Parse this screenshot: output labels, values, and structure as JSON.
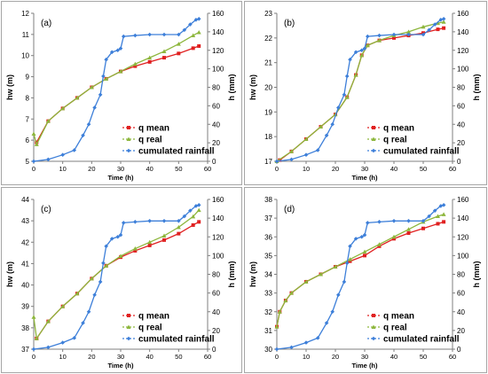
{
  "legend_labels": [
    "q mean",
    "q real",
    "cumulated rainfall"
  ],
  "colors": {
    "q_mean": "#e02020",
    "q_real": "#8db63c",
    "rainfall": "#3d7fd9",
    "axis": "#7f7f7f"
  },
  "chart_data": [
    {
      "panel_label": "(a)",
      "type": "line",
      "xlabel": "Time (h)",
      "ylabel": "hw (m)",
      "y2label": "h (mm)",
      "xlim": [
        0,
        60
      ],
      "ylim": [
        5,
        12
      ],
      "y2lim": [
        0,
        160
      ],
      "xticks": [
        0,
        10,
        20,
        30,
        40,
        50,
        60
      ],
      "yticks": [
        5,
        6,
        7,
        8,
        9,
        10,
        11,
        12
      ],
      "y2ticks": [
        0,
        20,
        40,
        60,
        80,
        100,
        120,
        140,
        160
      ],
      "legend_position": "bottom-right",
      "series": [
        {
          "name": "q mean",
          "axis": "left",
          "marker": "square",
          "x": [
            1,
            5,
            10,
            15,
            20,
            25,
            30,
            35,
            40,
            45,
            50,
            55,
            57
          ],
          "y": [
            5.9,
            6.9,
            7.5,
            8.0,
            8.5,
            8.9,
            9.25,
            9.5,
            9.7,
            9.9,
            10.1,
            10.35,
            10.45
          ]
        },
        {
          "name": "q real",
          "axis": "left",
          "marker": "triangle",
          "x": [
            0,
            1,
            5,
            10,
            15,
            20,
            25,
            30,
            35,
            40,
            45,
            50,
            55,
            57
          ],
          "y": [
            6.3,
            5.8,
            6.9,
            7.5,
            8.0,
            8.5,
            8.9,
            9.25,
            9.6,
            9.9,
            10.2,
            10.55,
            10.95,
            11.1
          ]
        },
        {
          "name": "cumulated rainfall",
          "axis": "right",
          "marker": "diamond",
          "x": [
            0,
            5,
            10,
            14,
            17,
            19,
            21,
            23,
            24,
            25,
            27,
            29,
            30,
            31,
            35,
            40,
            45,
            50,
            52,
            54,
            56,
            57
          ],
          "y": [
            0,
            2,
            7,
            12,
            28,
            40,
            58,
            72,
            92,
            110,
            118,
            120,
            122,
            135,
            136,
            137,
            137,
            137,
            142,
            148,
            153,
            154
          ]
        }
      ]
    },
    {
      "panel_label": "(b)",
      "type": "line",
      "xlabel": "Time (h)",
      "ylabel": "hw (m)",
      "y2label": "h (mm)",
      "xlim": [
        0,
        60
      ],
      "ylim": [
        17,
        23
      ],
      "y2lim": [
        0,
        160
      ],
      "xticks": [
        0,
        10,
        20,
        30,
        40,
        50,
        60
      ],
      "yticks": [
        17,
        18,
        19,
        20,
        21,
        22,
        23
      ],
      "y2ticks": [
        0,
        20,
        40,
        60,
        80,
        100,
        120,
        140,
        160
      ],
      "legend_position": "bottom-right",
      "series": [
        {
          "name": "q mean",
          "axis": "left",
          "marker": "square",
          "x": [
            1,
            5,
            10,
            15,
            20,
            24,
            27,
            29,
            31,
            35,
            40,
            45,
            50,
            55,
            57
          ],
          "y": [
            17.05,
            17.4,
            17.9,
            18.4,
            18.9,
            19.6,
            20.5,
            21.3,
            21.7,
            21.9,
            22.0,
            22.1,
            22.2,
            22.35,
            22.4
          ]
        },
        {
          "name": "q real",
          "axis": "left",
          "marker": "triangle",
          "x": [
            0,
            5,
            10,
            15,
            20,
            24,
            27,
            29,
            31,
            35,
            40,
            45,
            50,
            55,
            57
          ],
          "y": [
            17.0,
            17.4,
            17.9,
            18.4,
            18.9,
            19.6,
            20.5,
            21.3,
            21.7,
            21.9,
            22.1,
            22.25,
            22.45,
            22.6,
            22.65
          ]
        },
        {
          "name": "cumulated rainfall",
          "axis": "right",
          "marker": "diamond",
          "x": [
            0,
            5,
            10,
            14,
            17,
            19,
            21,
            23,
            24,
            25,
            27,
            29,
            30,
            31,
            35,
            40,
            45,
            50,
            52,
            54,
            56,
            57
          ],
          "y": [
            0,
            2,
            7,
            12,
            28,
            40,
            58,
            72,
            92,
            110,
            118,
            120,
            122,
            135,
            136,
            137,
            137,
            137,
            142,
            148,
            153,
            154
          ]
        }
      ]
    },
    {
      "panel_label": "(c)",
      "type": "line",
      "xlabel": "Time (h)",
      "ylabel": "hw (m)",
      "y2label": "h (mm)",
      "xlim": [
        0,
        60
      ],
      "ylim": [
        37,
        44
      ],
      "y2lim": [
        0,
        160
      ],
      "xticks": [
        0,
        10,
        20,
        30,
        40,
        50,
        60
      ],
      "yticks": [
        37,
        38,
        39,
        40,
        41,
        42,
        43,
        44
      ],
      "y2ticks": [
        0,
        20,
        40,
        60,
        80,
        100,
        120,
        140,
        160
      ],
      "legend_position": "bottom-right",
      "series": [
        {
          "name": "q mean",
          "axis": "left",
          "marker": "square",
          "x": [
            1,
            5,
            10,
            15,
            20,
            25,
            30,
            35,
            40,
            45,
            50,
            55,
            57
          ],
          "y": [
            37.5,
            38.3,
            39.0,
            39.6,
            40.3,
            40.9,
            41.3,
            41.6,
            41.85,
            42.1,
            42.4,
            42.8,
            42.95
          ]
        },
        {
          "name": "q real",
          "axis": "left",
          "marker": "triangle",
          "x": [
            0,
            1,
            5,
            10,
            15,
            20,
            25,
            30,
            35,
            40,
            45,
            50,
            55,
            57
          ],
          "y": [
            38.5,
            37.5,
            38.3,
            39.0,
            39.6,
            40.3,
            40.9,
            41.35,
            41.7,
            42.0,
            42.3,
            42.7,
            43.2,
            43.5
          ]
        },
        {
          "name": "cumulated rainfall",
          "axis": "right",
          "marker": "diamond",
          "x": [
            0,
            5,
            10,
            14,
            17,
            19,
            21,
            23,
            24,
            25,
            27,
            29,
            30,
            31,
            35,
            40,
            45,
            50,
            52,
            54,
            56,
            57
          ],
          "y": [
            0,
            2,
            7,
            12,
            28,
            40,
            58,
            72,
            92,
            110,
            118,
            120,
            122,
            135,
            136,
            137,
            137,
            137,
            142,
            148,
            153,
            154
          ]
        }
      ]
    },
    {
      "panel_label": "(d)",
      "type": "line",
      "xlabel": "Time (h)",
      "ylabel": "hw (m)",
      "y2label": "h (mm)",
      "xlim": [
        0,
        60
      ],
      "ylim": [
        30,
        38
      ],
      "y2lim": [
        0,
        160
      ],
      "xticks": [
        0,
        10,
        20,
        30,
        40,
        50,
        60
      ],
      "yticks": [
        30,
        31,
        32,
        33,
        34,
        35,
        36,
        37,
        38
      ],
      "y2ticks": [
        0,
        20,
        40,
        60,
        80,
        100,
        120,
        140,
        160
      ],
      "legend_position": "bottom-right",
      "series": [
        {
          "name": "q mean",
          "axis": "left",
          "marker": "square",
          "x": [
            0,
            1,
            3,
            5,
            10,
            15,
            20,
            25,
            30,
            35,
            40,
            45,
            50,
            55,
            57
          ],
          "y": [
            31.2,
            32.0,
            32.6,
            33.0,
            33.6,
            34.0,
            34.4,
            34.7,
            35.0,
            35.5,
            35.9,
            36.2,
            36.45,
            36.7,
            36.8
          ]
        },
        {
          "name": "q real",
          "axis": "left",
          "marker": "triangle",
          "x": [
            0,
            1,
            3,
            5,
            10,
            15,
            20,
            25,
            30,
            35,
            40,
            45,
            50,
            55,
            57
          ],
          "y": [
            31.2,
            32.0,
            32.6,
            33.0,
            33.6,
            34.0,
            34.4,
            34.8,
            35.2,
            35.6,
            36.0,
            36.4,
            36.8,
            37.1,
            37.2
          ]
        },
        {
          "name": "cumulated rainfall",
          "axis": "right",
          "marker": "diamond",
          "x": [
            0,
            5,
            10,
            14,
            17,
            19,
            21,
            23,
            24,
            25,
            27,
            29,
            30,
            31,
            35,
            40,
            45,
            50,
            52,
            54,
            56,
            57
          ],
          "y": [
            0,
            2,
            7,
            12,
            28,
            40,
            58,
            72,
            92,
            110,
            118,
            120,
            122,
            135,
            136,
            137,
            137,
            137,
            142,
            148,
            153,
            154
          ]
        }
      ]
    }
  ]
}
